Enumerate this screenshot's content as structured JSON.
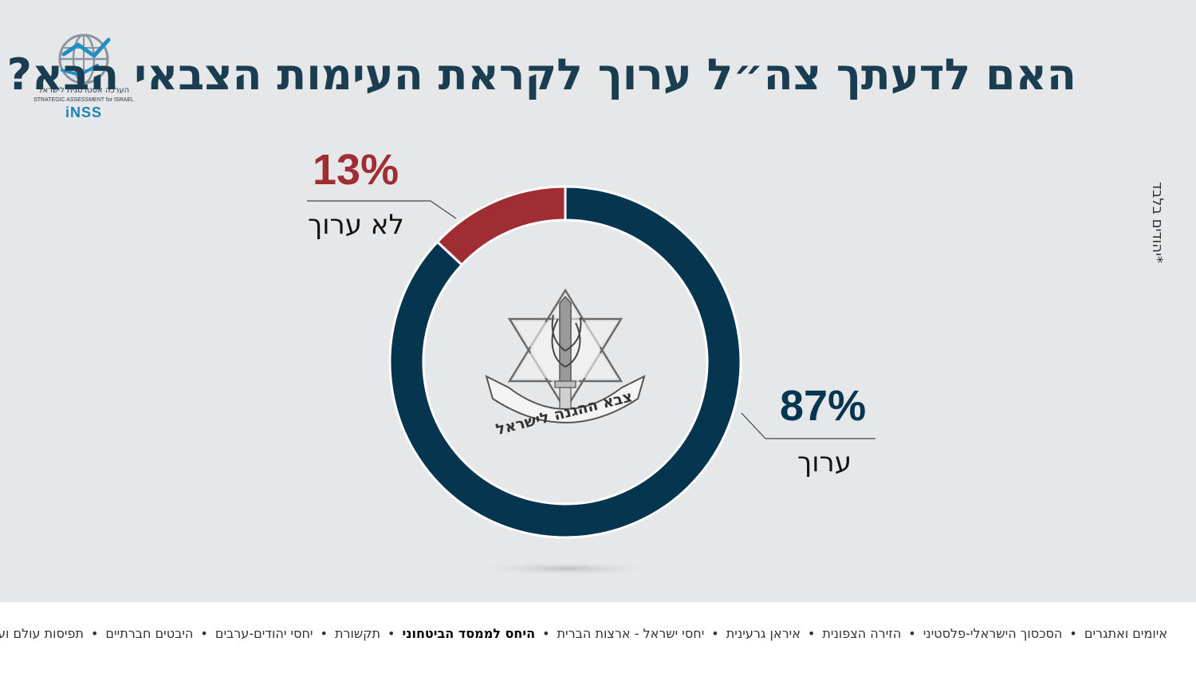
{
  "logo": {
    "hebrew": "הערכה אסטרטגית לישראל",
    "english": "STRATEGIC ASSESSMENT for ISRAEL",
    "brand": "iNSS",
    "icon": "globe-icon"
  },
  "title": "האם לדעתך צה״ל ערוך לקראת העימות הצבאי הבא?",
  "side_note": "*יהודים בלבד",
  "center_emblem": {
    "icon": "idf-emblem-icon",
    "text": "צבא ההגנה לישראל"
  },
  "chart_data": {
    "type": "pie",
    "donut": true,
    "title": "האם לדעתך צה״ל ערוך לקראת העימות הצבאי הבא?",
    "slices": [
      {
        "label": "ערוך",
        "value": 87,
        "display": "87%",
        "color": "#06364f"
      },
      {
        "label": "לא ערוך",
        "value": 13,
        "display": "13%",
        "color": "#a12d34"
      }
    ]
  },
  "footer": {
    "items": [
      {
        "label": "איומים ואתגרים",
        "active": false
      },
      {
        "label": "הסכסוך הישראלי-פלסטיני",
        "active": false
      },
      {
        "label": "הזירה הצפונית",
        "active": false
      },
      {
        "label": "איראן גרעינית",
        "active": false
      },
      {
        "label": "יחסי ישראל - ארצות הברית",
        "active": false
      },
      {
        "label": "היחס לממסד הביטחוני",
        "active": true
      },
      {
        "label": "תקשורת",
        "active": false
      },
      {
        "label": "יחסי יהודים-ערבים",
        "active": false
      },
      {
        "label": "היבטים חברתיים",
        "active": false
      },
      {
        "label": "תפיסות עולם וערכים",
        "active": false
      }
    ],
    "separator": "•"
  }
}
